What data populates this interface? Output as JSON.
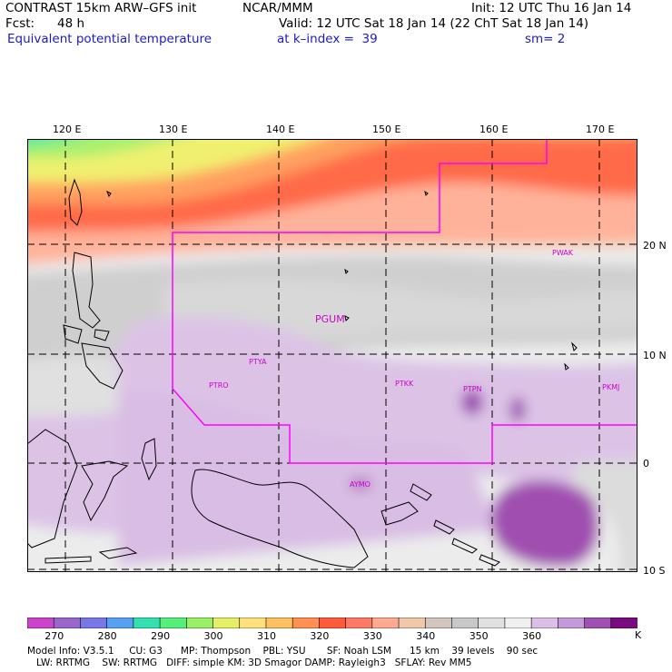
{
  "header": {
    "model_title": "CONTRAST 15km ARW–GFS init",
    "org": "NCAR/MMM",
    "fcst_label": "Fcst:",
    "fcst_value": "48 h",
    "field_name": "Equivalent potential temperature",
    "init": "Init: 12 UTC Thu 16 Jan 14",
    "valid": "Valid: 12 UTC Sat 18 Jan 14 (22 ChT Sat 18 Jan 14)",
    "level": "at k–index =  39",
    "smoothing": "sm= 2"
  },
  "map": {
    "lon_ticks": [
      "120 E",
      "130 E",
      "140 E",
      "150 E",
      "160 E",
      "170 E"
    ],
    "lat_ticks": [
      "20 N",
      "10 N",
      "0",
      "10 S"
    ],
    "stations": [
      {
        "id": "PGUM",
        "lon": 144.8,
        "lat": 13.5
      },
      {
        "id": "PTYA",
        "lon": 138.1,
        "lat": 9.5
      },
      {
        "id": "PTRO",
        "lon": 134.5,
        "lat": 7.4
      },
      {
        "id": "PTKK",
        "lon": 151.8,
        "lat": 7.5
      },
      {
        "id": "PTPN",
        "lon": 158.2,
        "lat": 6.9
      },
      {
        "id": "PKMJ",
        "lon": 171.4,
        "lat": 7.1
      },
      {
        "id": "PWAK",
        "lon": 166.6,
        "lat": 19.3
      },
      {
        "id": "AYMO",
        "lon": 147.2,
        "lat": -2.0
      }
    ],
    "colors": {
      "grid": "#000000",
      "station_label": "#cc00cc",
      "domain_boundary": "#ff00ff"
    }
  },
  "colorbar": {
    "unit": "K",
    "labels": [
      "270",
      "280",
      "290",
      "300",
      "310",
      "320",
      "330",
      "340",
      "350",
      "360"
    ],
    "colors": [
      "#cc44cc",
      "#9966cc",
      "#7777e6",
      "#55a0f0",
      "#33e0b0",
      "#55f07a",
      "#99f066",
      "#e6f066",
      "#ffe07a",
      "#ffc060",
      "#ff9050",
      "#ff5a3a",
      "#ff7a66",
      "#ffaa90",
      "#f0c8aa",
      "#d2c6be",
      "#c8c8c8",
      "#e0e0e0",
      "#f0f0f0",
      "#dcbfe6",
      "#c499d9",
      "#a050b0",
      "#7a0a80"
    ]
  },
  "footer": {
    "line1": "Model Info: V3.5.1     CU: G3      MP: Thompson    PBL: YSU       SF: Noah LSM      15 km    39 levels    90 sec",
    "line2": "   LW: RRTMG    SW: RRTMG   DIFF: simple KM: 3D Smagor DAMP: Rayleigh3   SFLAY: Rev MM5"
  }
}
